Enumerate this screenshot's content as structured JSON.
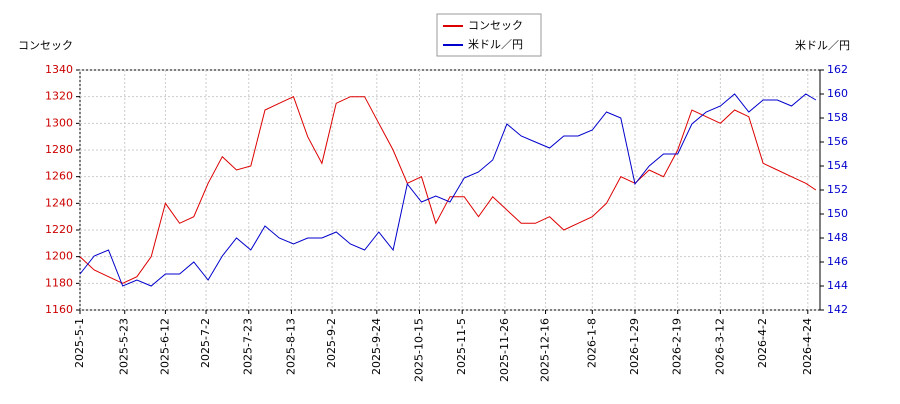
{
  "chart_data": {
    "type": "line",
    "y_label": "コンセック",
    "y2_label": "米ドル／円",
    "x": [
      "2025-5-1",
      "2025-5-8",
      "2025-5-15",
      "2025-5-22",
      "2025-5-29",
      "2025-6-5",
      "2025-6-12",
      "2025-6-19",
      "2025-6-26",
      "2025-7-3",
      "2025-7-10",
      "2025-7-17",
      "2025-7-24",
      "2025-7-31",
      "2025-8-7",
      "2025-8-14",
      "2025-8-21",
      "2025-8-28",
      "2025-9-4",
      "2025-9-11",
      "2025-9-18",
      "2025-9-25",
      "2025-10-2",
      "2025-10-9",
      "2025-10-16",
      "2025-10-23",
      "2025-10-30",
      "2025-11-6",
      "2025-11-13",
      "2025-11-20",
      "2025-11-27",
      "2025-12-4",
      "2025-12-11",
      "2025-12-18",
      "2025-12-25",
      "2026-1-1",
      "2026-1-8",
      "2026-1-15",
      "2026-1-22",
      "2026-1-29",
      "2026-2-5",
      "2026-2-12",
      "2026-2-19",
      "2026-2-26",
      "2026-3-5",
      "2026-3-12",
      "2026-3-19",
      "2026-3-26",
      "2026-4-2",
      "2026-4-9",
      "2026-4-16",
      "2026-4-23",
      "2026-4-28"
    ],
    "series": [
      {
        "name": "コンセック",
        "color": "#dd0000",
        "axis": "y",
        "values": [
          1200,
          1190,
          1185,
          1180,
          1185,
          1200,
          1240,
          1225,
          1230,
          1255,
          1275,
          1265,
          1268,
          1310,
          1315,
          1320,
          1290,
          1270,
          1315,
          1320,
          1320,
          1300,
          1280,
          1255,
          1260,
          1225,
          1245,
          1245,
          1230,
          1245,
          1235,
          1225,
          1225,
          1230,
          1220,
          1225,
          1230,
          1240,
          1260,
          1255,
          1265,
          1260,
          1280,
          1310,
          1305,
          1300,
          1310,
          1305,
          1270,
          1265,
          1260,
          1255,
          1250
        ]
      },
      {
        "name": "米ドル／円",
        "color": "#0000cc",
        "axis": "y2",
        "values": [
          145,
          146.5,
          147,
          144,
          144.5,
          144,
          145,
          145,
          146,
          144.5,
          146.5,
          148,
          147,
          149,
          148,
          147.5,
          148,
          148,
          148.5,
          147.5,
          147,
          148.5,
          147,
          152.5,
          151,
          151.5,
          151,
          153,
          153.5,
          154.5,
          157.5,
          156.5,
          156,
          155.5,
          156.5,
          156.5,
          157,
          158.5,
          158,
          152.5,
          154,
          155,
          155,
          157.5,
          158.5,
          159,
          160,
          158.5,
          159.5,
          159.5,
          159,
          160,
          159.5
        ]
      }
    ],
    "xlim": [
      "2025-5-1",
      "2026-4-30"
    ],
    "xticks": [
      "2025-5-1",
      "2025-5-23",
      "2025-6-12",
      "2025-7-2",
      "2025-7-23",
      "2025-8-13",
      "2025-9-2",
      "2025-9-24",
      "2025-10-15",
      "2025-11-5",
      "2025-11-26",
      "2025-12-16",
      "2026-1-8",
      "2026-1-29",
      "2026-2-19",
      "2026-3-12",
      "2026-4-2",
      "2026-4-24"
    ],
    "ylim": [
      1160,
      1340
    ],
    "yticks": [
      1160,
      1180,
      1200,
      1220,
      1240,
      1260,
      1280,
      1300,
      1320,
      1340
    ],
    "y2lim": [
      142,
      162
    ],
    "y2ticks": [
      142,
      144,
      146,
      148,
      150,
      152,
      154,
      156,
      158,
      160,
      162
    ],
    "grid": true
  }
}
